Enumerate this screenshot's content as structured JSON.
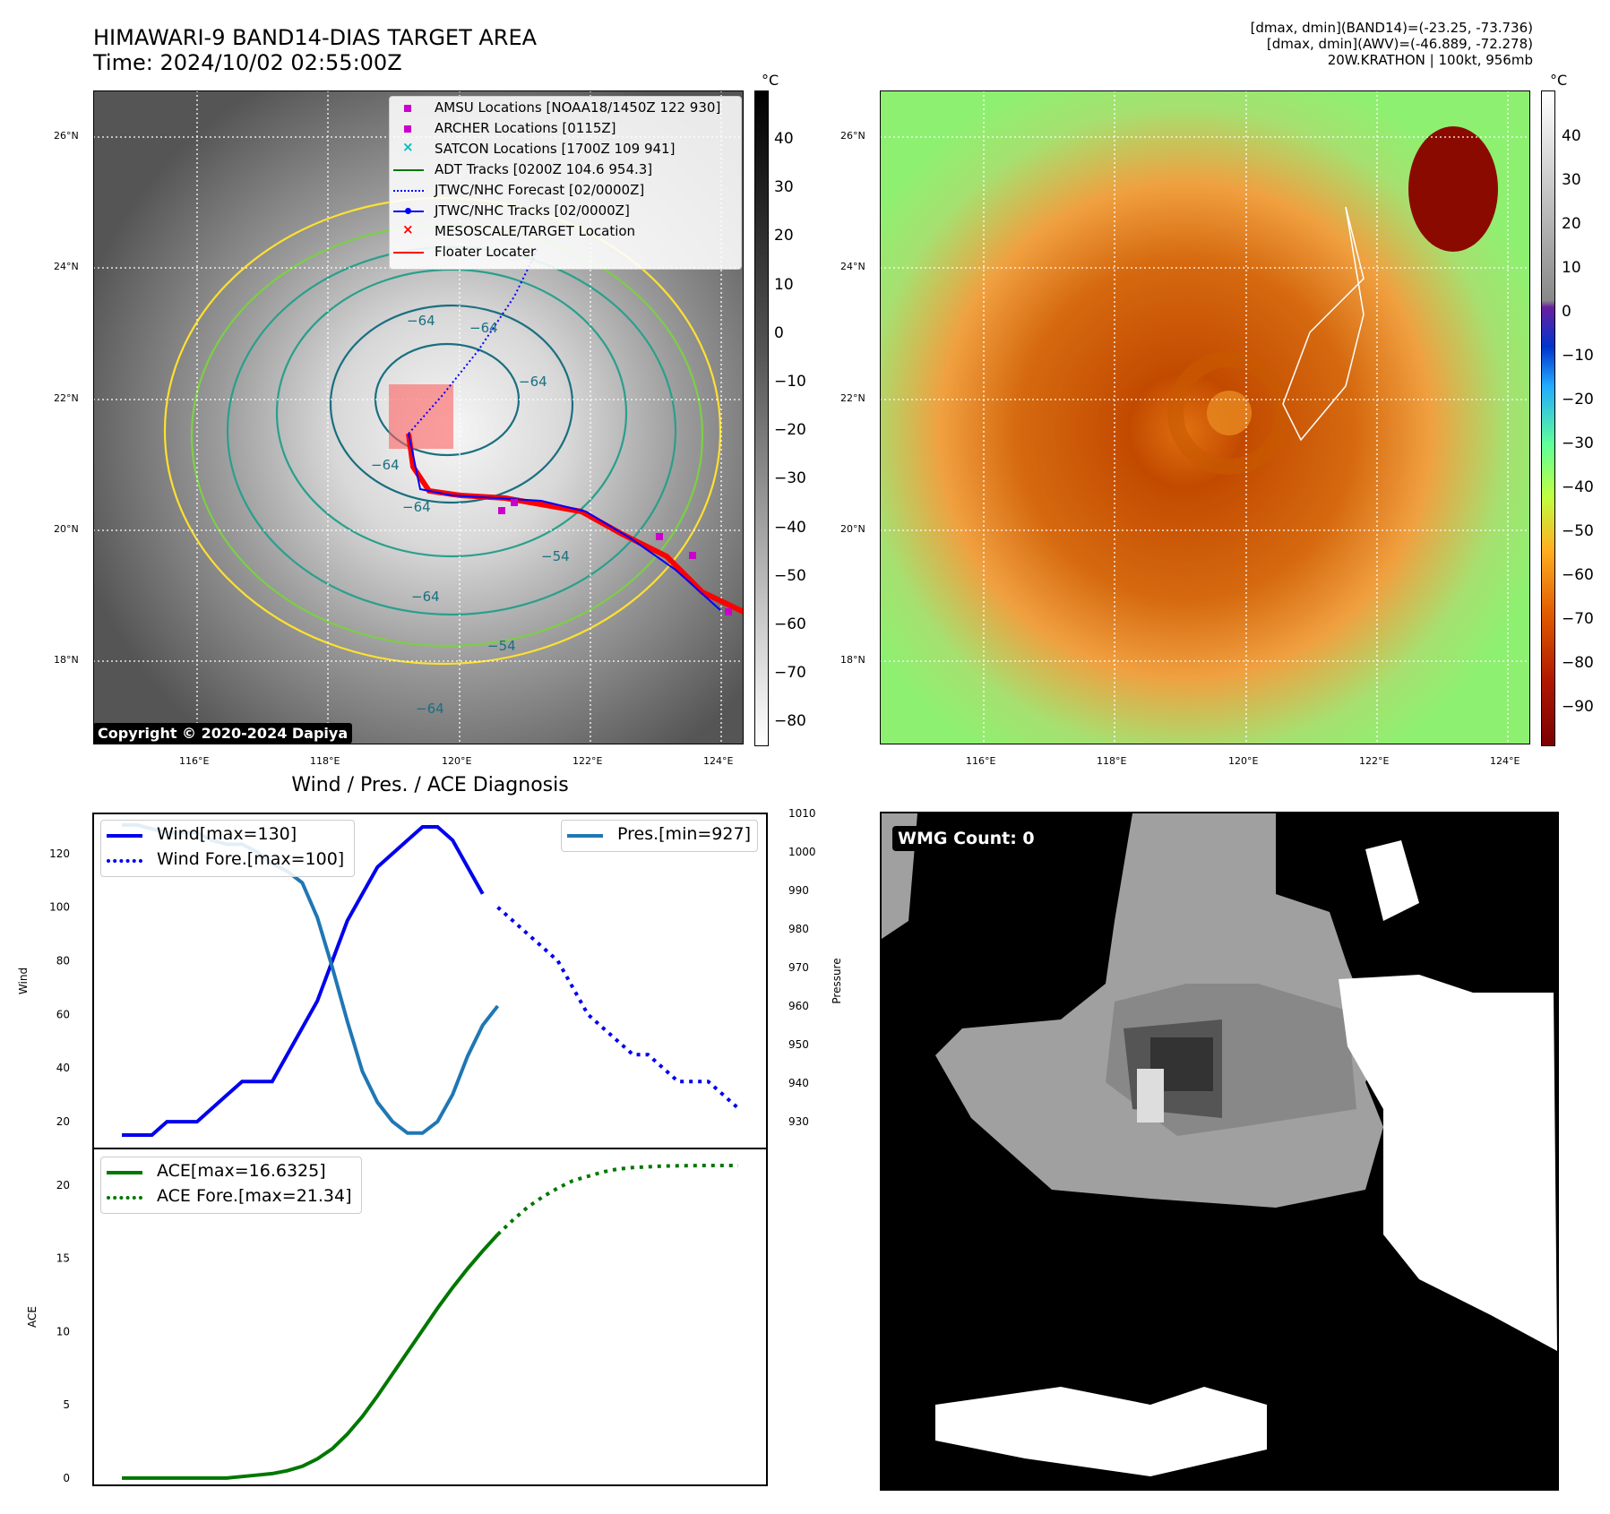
{
  "header": {
    "title_line1": "HIMAWARI-9 BAND14-DIAS TARGET AREA",
    "title_line2": "Time: 2024/10/02 02:55:00Z",
    "stats_line1": "[dmax, dmin](BAND14)=(-23.25, -73.736)",
    "stats_line2": "[dmax, dmin](AWV)=(-46.889, -72.278)",
    "stats_line3": "20W.KRATHON | 100kt, 956mb"
  },
  "map_left": {
    "lat_ticks": [
      "26°N",
      "24°N",
      "22°N",
      "20°N",
      "18°N"
    ],
    "lon_ticks": [
      "116°E",
      "118°E",
      "120°E",
      "122°E",
      "124°E"
    ],
    "colorbar_unit": "°C",
    "colorbar_ticks": [
      "40",
      "30",
      "20",
      "10",
      "0",
      "−10",
      "−20",
      "−30",
      "−40",
      "−50",
      "−60",
      "−70",
      "−80"
    ],
    "contour_labels": [
      "−64",
      "−64",
      "−64",
      "−64",
      "−64",
      "−64",
      "−54",
      "−54",
      "−64"
    ],
    "copyright": "Copyright © 2020-2024 Dapiya",
    "legend": [
      {
        "label": "AMSU Locations [NOAA18/1450Z 122 930]",
        "color": "#cc00cc",
        "marker": "square"
      },
      {
        "label": "ARCHER Locations [0115Z]",
        "color": "#cc00cc",
        "marker": "square"
      },
      {
        "label": "SATCON Locations [1700Z 109 941]",
        "color": "#00bbbb",
        "marker": "x"
      },
      {
        "label": "ADT Tracks [0200Z 104.6 954.3]",
        "color": "#007700",
        "marker": "line"
      },
      {
        "label": "JTWC/NHC Forecast [02/0000Z]",
        "color": "#0000ff",
        "marker": "dotted"
      },
      {
        "label": "JTWC/NHC Tracks [02/0000Z]",
        "color": "#0000ff",
        "marker": "line-dot"
      },
      {
        "label": "MESOSCALE/TARGET Location",
        "color": "#ff0000",
        "marker": "x"
      },
      {
        "label": "Floater Locater",
        "color": "#ff0000",
        "marker": "line"
      }
    ]
  },
  "map_right": {
    "lat_ticks": [
      "26°N",
      "24°N",
      "22°N",
      "20°N",
      "18°N"
    ],
    "lon_ticks": [
      "116°E",
      "118°E",
      "120°E",
      "122°E",
      "124°E"
    ],
    "colorbar_unit": "°C",
    "colorbar_ticks": [
      "40",
      "30",
      "20",
      "10",
      "0",
      "−10",
      "−20",
      "−30",
      "−40",
      "−50",
      "−60",
      "−70",
      "−80",
      "−90"
    ]
  },
  "diagnosis": {
    "title": "Wind / Pres. / ACE Diagnosis",
    "wind_ylabel": "Wind",
    "pres_ylabel": "Pressure",
    "ace_ylabel": "ACE",
    "wind_ticks": [
      "120",
      "100",
      "80",
      "60",
      "40",
      "20"
    ],
    "pres_ticks": [
      "1010",
      "1000",
      "990",
      "980",
      "970",
      "960",
      "950",
      "940",
      "930"
    ],
    "ace_ticks": [
      "20",
      "15",
      "10",
      "5",
      "0"
    ],
    "legend_wind": "Wind[max=130]",
    "legend_wind_fore": "Wind Fore.[max=100]",
    "legend_pres": "Pres.[min=927]",
    "legend_ace": "ACE[max=16.6325]",
    "legend_ace_fore": "ACE Fore.[max=21.34]"
  },
  "wmg": {
    "label": "WMG Count: 0"
  },
  "colors": {
    "wind": "#0000ee",
    "pressure": "#1f77b4",
    "ace": "#007700",
    "track": "#ff0000"
  },
  "chart_data": [
    {
      "type": "line",
      "name": "wind-pressure",
      "wind": {
        "x": [
          0,
          1,
          2,
          3,
          4,
          5,
          6,
          7,
          8,
          9,
          10,
          11,
          12,
          13,
          14,
          15,
          16,
          17,
          18,
          19,
          20,
          21,
          22,
          23,
          24
        ],
        "y": [
          15,
          15,
          15,
          20,
          20,
          20,
          25,
          30,
          35,
          35,
          35,
          45,
          55,
          65,
          80,
          95,
          105,
          115,
          120,
          125,
          130,
          130,
          125,
          115,
          105
        ]
      },
      "wind_fore": {
        "x": [
          25,
          26,
          27,
          28,
          29,
          30,
          31,
          32,
          33,
          34,
          35,
          36,
          37,
          38,
          39,
          40,
          41
        ],
        "y": [
          100,
          95,
          90,
          85,
          80,
          70,
          60,
          55,
          50,
          45,
          45,
          40,
          35,
          35,
          35,
          30,
          25
        ]
      },
      "pressure": {
        "x": [
          0,
          1,
          2,
          3,
          4,
          5,
          6,
          7,
          8,
          9,
          10,
          11,
          12,
          13,
          14,
          15,
          16,
          17,
          18,
          19,
          20,
          21,
          22,
          23,
          24,
          25
        ],
        "y": [
          1007,
          1007,
          1006,
          1005,
          1005,
          1005,
          1003,
          1002,
          1002,
          1000,
          997,
          995,
          992,
          983,
          970,
          956,
          943,
          935,
          930,
          927,
          927,
          930,
          937,
          947,
          955,
          960
        ]
      },
      "ylim_wind": [
        10,
        135
      ],
      "ylim_pressure": [
        923,
        1010
      ]
    },
    {
      "type": "line",
      "name": "ace",
      "ace": {
        "x": [
          0,
          1,
          2,
          3,
          4,
          5,
          6,
          7,
          8,
          9,
          10,
          11,
          12,
          13,
          14,
          15,
          16,
          17,
          18,
          19,
          20,
          21,
          22,
          23,
          24,
          25
        ],
        "y": [
          0,
          0,
          0,
          0,
          0,
          0,
          0,
          0,
          0.1,
          0.2,
          0.3,
          0.5,
          0.8,
          1.3,
          2.0,
          3.0,
          4.2,
          5.6,
          7.1,
          8.6,
          10.1,
          11.6,
          13.0,
          14.3,
          15.5,
          16.6325
        ]
      },
      "ace_fore": {
        "x": [
          25,
          26,
          27,
          28,
          29,
          30,
          31,
          32,
          33,
          34,
          35,
          36,
          37,
          38,
          39,
          40,
          41
        ],
        "y": [
          16.6325,
          17.6,
          18.5,
          19.2,
          19.8,
          20.3,
          20.6,
          20.9,
          21.1,
          21.2,
          21.25,
          21.3,
          21.32,
          21.33,
          21.34,
          21.34,
          21.34
        ]
      },
      "ylim": [
        -0.5,
        22.5
      ]
    }
  ]
}
